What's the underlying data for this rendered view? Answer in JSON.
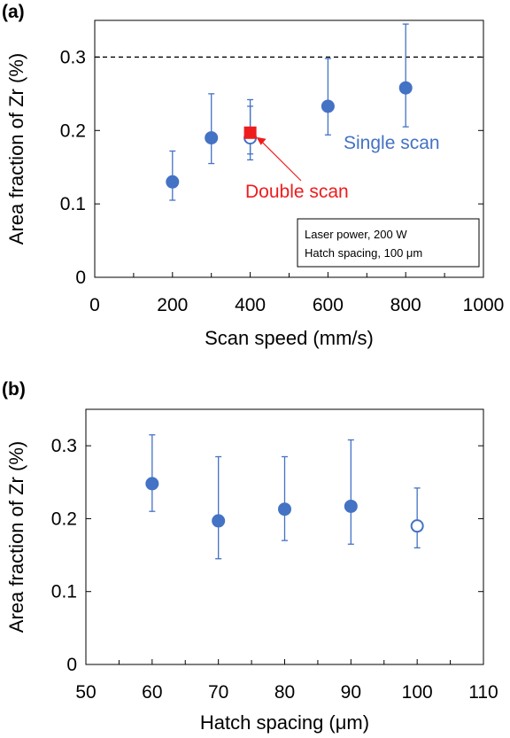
{
  "chart_data": [
    {
      "panel_label": "(a)",
      "type": "scatter",
      "xlabel": "Scan speed (mm/s)",
      "ylabel": "Area fraction of Zr (%)",
      "xlim": [
        0,
        1000
      ],
      "ylim": [
        0,
        0.35
      ],
      "xticks": [
        0,
        200,
        400,
        600,
        800,
        1000
      ],
      "yticks": [
        0,
        0.1,
        0.2,
        0.3
      ],
      "ytick_labels": [
        "0",
        "0.1",
        "0.2",
        "0.3"
      ],
      "reference_line": {
        "y": 0.3,
        "style": "dashed"
      },
      "series": [
        {
          "name": "Single scan",
          "color": "#4472c4",
          "points": [
            {
              "x": 200,
              "y": 0.13,
              "err_low": 0.105,
              "err_high": 0.172,
              "marker": "filled"
            },
            {
              "x": 300,
              "y": 0.19,
              "err_low": 0.155,
              "err_high": 0.25,
              "marker": "filled"
            },
            {
              "x": 400,
              "y": 0.19,
              "err_low": 0.16,
              "err_high": 0.242,
              "marker": "open"
            },
            {
              "x": 600,
              "y": 0.233,
              "err_low": 0.194,
              "err_high": 0.298,
              "marker": "filled"
            },
            {
              "x": 800,
              "y": 0.258,
              "err_low": 0.205,
              "err_high": 0.345,
              "marker": "filled"
            }
          ]
        },
        {
          "name": "Double scan",
          "color": "#ee1c1c",
          "points": [
            {
              "x": 400,
              "y": 0.197,
              "err_low": 0.168,
              "err_high": 0.233,
              "marker": "square"
            }
          ]
        }
      ],
      "annotations": {
        "single_scan": "Single scan",
        "double_scan": "Double scan",
        "conditions": [
          "Laser power, 200 W",
          "Hatch spacing, 100 μm"
        ]
      }
    },
    {
      "panel_label": "(b)",
      "type": "scatter",
      "xlabel": "Hatch spacing (μm)",
      "ylabel": "Area fraction of Zr (%)",
      "xlim": [
        50,
        110
      ],
      "ylim": [
        0,
        0.35
      ],
      "xticks": [
        50,
        60,
        70,
        80,
        90,
        100,
        110
      ],
      "yticks": [
        0,
        0.1,
        0.2,
        0.3
      ],
      "ytick_labels": [
        "0",
        "0.1",
        "0.2",
        "0.3"
      ],
      "series": [
        {
          "color": "#4472c4",
          "points": [
            {
              "x": 60,
              "y": 0.248,
              "err_low": 0.21,
              "err_high": 0.315,
              "marker": "filled"
            },
            {
              "x": 70,
              "y": 0.197,
              "err_low": 0.145,
              "err_high": 0.285,
              "marker": "filled"
            },
            {
              "x": 80,
              "y": 0.213,
              "err_low": 0.17,
              "err_high": 0.285,
              "marker": "filled"
            },
            {
              "x": 90,
              "y": 0.217,
              "err_low": 0.165,
              "err_high": 0.308,
              "marker": "filled"
            },
            {
              "x": 100,
              "y": 0.19,
              "err_low": 0.16,
              "err_high": 0.242,
              "marker": "open"
            }
          ]
        }
      ]
    }
  ]
}
